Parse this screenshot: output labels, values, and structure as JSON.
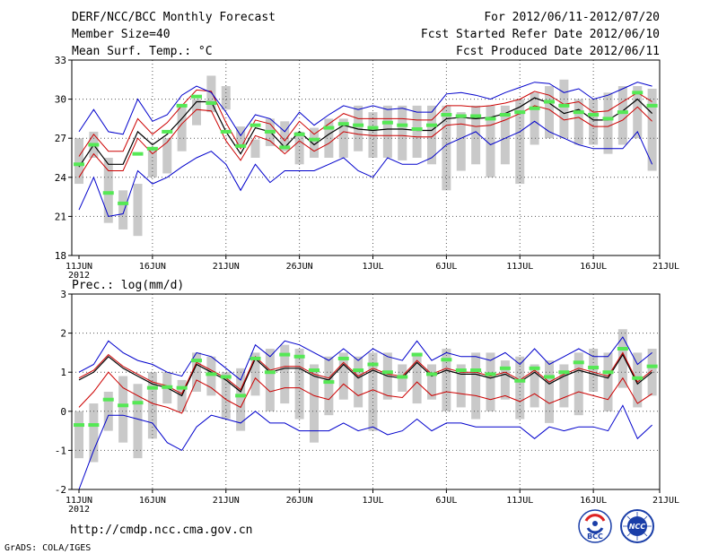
{
  "header": {
    "left": [
      "DERF/NCC/BCC Monthly Forecast",
      "Member Size=40",
      "Mean Surf. Temp.: °C"
    ],
    "right": [
      "For 2012/06/11-2012/07/20",
      "Fcst Started Refer Date 2012/06/10",
      "Fcst Produced Date 2012/06/11"
    ]
  },
  "footer": {
    "url": "http://cmdp.ncc.cma.gov.cn",
    "credit": "GrADS: COLA/IGES",
    "logo1": "BCC",
    "logo2": "NCC"
  },
  "colors": {
    "spread": "#c9c9c9",
    "median": "#55e855",
    "envelope": "#0000cc",
    "band": "#cc0000",
    "mean": "#000000",
    "grid": "#555555"
  },
  "chart_data": [
    {
      "type": "line",
      "title": "Mean Surf. Temp.: °C",
      "ylim": [
        18,
        33
      ],
      "yticks": [
        18,
        21,
        24,
        27,
        30,
        33
      ],
      "xtick_labels": [
        "11JUN",
        "16JUN",
        "21JUN",
        "26JUN",
        "1JUL",
        "6JUL",
        "11JUL",
        "16JUL",
        "21JUL"
      ],
      "xtick_days": [
        0,
        5,
        10,
        15,
        20,
        25,
        30,
        35,
        40
      ],
      "x_sublabel": "2012",
      "days": [
        0,
        1,
        2,
        3,
        4,
        5,
        6,
        7,
        8,
        9,
        10,
        11,
        12,
        13,
        14,
        15,
        16,
        17,
        18,
        19,
        20,
        21,
        22,
        23,
        24,
        25,
        26,
        27,
        28,
        29,
        30,
        31,
        32,
        33,
        34,
        35,
        36,
        37,
        38,
        39
      ],
      "box_low": [
        23.5,
        25.5,
        20.5,
        20.0,
        19.5,
        24.0,
        24.3,
        26.0,
        28.0,
        29.0,
        29.2,
        26.5,
        25.5,
        26.4,
        26.0,
        25.0,
        25.5,
        25.5,
        25.5,
        26.0,
        25.5,
        25.5,
        25.3,
        25.5,
        25.0,
        23.0,
        24.5,
        25.0,
        24.0,
        25.0,
        23.5,
        26.5,
        27.0,
        27.0,
        26.5,
        26.5,
        25.8,
        26.5,
        27.0,
        24.5
      ],
      "box_high": [
        27.0,
        27.5,
        25.5,
        23.0,
        23.5,
        26.2,
        27.0,
        29.5,
        30.0,
        31.8,
        31.0,
        27.9,
        26.9,
        28.5,
        28.3,
        27.5,
        27.8,
        28.5,
        28.5,
        29.5,
        29.0,
        29.5,
        29.5,
        29.5,
        29.5,
        29.5,
        29.0,
        29.5,
        29.5,
        29.5,
        30.0,
        30.5,
        31.0,
        31.5,
        30.0,
        30.0,
        30.5,
        31.0,
        31.0,
        30.8
      ],
      "series": [
        {
          "name": "median",
          "values": [
            25.0,
            26.5,
            22.8,
            22.0,
            25.8,
            26.2,
            27.5,
            29.5,
            30.2,
            29.7,
            27.5,
            26.4,
            28.0,
            27.5,
            26.3,
            27.3,
            26.9,
            27.8,
            28.1,
            28.0,
            27.8,
            28.2,
            28.0,
            27.7,
            28.0,
            28.8,
            28.7,
            28.7,
            28.5,
            28.8,
            29.0,
            29.3,
            29.8,
            29.5,
            29.0,
            28.8,
            28.5,
            29.0,
            30.5,
            29.5
          ]
        },
        {
          "name": "mean",
          "values": [
            24.8,
            26.5,
            25.0,
            25.0,
            27.5,
            26.5,
            27.3,
            28.5,
            29.8,
            29.8,
            27.5,
            25.8,
            27.8,
            27.5,
            26.3,
            27.5,
            26.5,
            27.3,
            28.0,
            27.7,
            27.6,
            27.7,
            27.7,
            27.6,
            27.6,
            28.5,
            28.6,
            28.5,
            28.6,
            28.9,
            29.4,
            30.1,
            29.7,
            28.9,
            29.2,
            28.4,
            28.4,
            29.1,
            30.0,
            28.9
          ]
        },
        {
          "name": "upper-band",
          "values": [
            25.6,
            27.3,
            26.0,
            26.0,
            28.5,
            27.3,
            28.2,
            29.5,
            30.7,
            30.6,
            28.2,
            26.2,
            28.4,
            28.1,
            26.8,
            28.3,
            27.3,
            28.1,
            28.9,
            28.5,
            28.5,
            28.5,
            28.5,
            28.4,
            28.4,
            29.5,
            29.5,
            29.4,
            29.5,
            29.7,
            30.0,
            30.6,
            30.3,
            29.6,
            29.8,
            29.0,
            29.1,
            29.8,
            30.5,
            29.8
          ]
        },
        {
          "name": "lower-band",
          "values": [
            24.0,
            25.8,
            24.5,
            24.5,
            27.0,
            25.8,
            26.7,
            28.1,
            29.2,
            29.1,
            26.8,
            25.3,
            27.2,
            26.8,
            25.8,
            26.8,
            26.0,
            26.6,
            27.5,
            27.3,
            27.2,
            27.2,
            27.2,
            27.1,
            27.1,
            28.0,
            28.1,
            27.9,
            28.0,
            28.4,
            28.9,
            29.5,
            29.2,
            28.4,
            28.6,
            27.9,
            27.9,
            28.4,
            29.4,
            28.3
          ]
        },
        {
          "name": "upper-envelope",
          "values": [
            27.5,
            29.2,
            27.5,
            27.3,
            30.0,
            28.3,
            28.8,
            30.3,
            31.0,
            30.5,
            29.0,
            27.2,
            28.8,
            28.5,
            27.5,
            29.0,
            28.0,
            28.8,
            29.5,
            29.2,
            29.5,
            29.2,
            29.3,
            29.0,
            29.0,
            30.4,
            30.5,
            30.3,
            30.0,
            30.5,
            30.9,
            31.3,
            31.2,
            30.5,
            30.8,
            30.0,
            30.3,
            30.8,
            31.3,
            31.0
          ]
        },
        {
          "name": "lower-envelope",
          "values": [
            21.5,
            24.0,
            21.0,
            21.2,
            24.5,
            23.5,
            24.0,
            24.8,
            25.5,
            26.0,
            25.0,
            23.0,
            25.0,
            23.6,
            24.5,
            24.5,
            24.5,
            25.0,
            25.5,
            24.5,
            24.0,
            25.5,
            25.0,
            25.0,
            25.5,
            26.5,
            27.0,
            27.5,
            26.5,
            27.0,
            27.5,
            28.3,
            27.5,
            27.0,
            26.5,
            26.2,
            26.2,
            26.2,
            27.5,
            25.0
          ]
        }
      ]
    },
    {
      "type": "line",
      "title": "Prec.: log(mm/d)",
      "ylim": [
        -2,
        3
      ],
      "yticks": [
        -2,
        -1,
        0,
        1,
        2,
        3
      ],
      "xtick_labels": [
        "11JUN",
        "16JUN",
        "21JUN",
        "26JUN",
        "1JUL",
        "6JUL",
        "11JUL",
        "16JUL",
        "21JUL"
      ],
      "xtick_days": [
        0,
        5,
        10,
        15,
        20,
        25,
        30,
        35,
        40
      ],
      "x_sublabel": "2012",
      "days": [
        0,
        1,
        2,
        3,
        4,
        5,
        6,
        7,
        8,
        9,
        10,
        11,
        12,
        13,
        14,
        15,
        16,
        17,
        18,
        19,
        20,
        21,
        22,
        23,
        24,
        25,
        26,
        27,
        28,
        29,
        30,
        31,
        32,
        33,
        34,
        35,
        36,
        37,
        38,
        39
      ],
      "box_low": [
        -1.2,
        -1.3,
        -0.5,
        -0.8,
        -1.2,
        -0.7,
        0.2,
        0.0,
        0.5,
        0.4,
        -0.2,
        -0.5,
        0.4,
        0.0,
        0.2,
        -0.2,
        -0.8,
        -0.1,
        0.3,
        0.1,
        -0.5,
        0.3,
        0.5,
        0.2,
        0.3,
        0.0,
        0.1,
        -0.2,
        0.0,
        0.3,
        -0.2,
        0.1,
        -0.3,
        0.1,
        -0.1,
        0.5,
        0.0,
        0.6,
        0.1,
        0.4
      ],
      "box_high": [
        0.0,
        0.2,
        0.5,
        0.9,
        0.7,
        1.0,
        1.0,
        0.8,
        1.5,
        1.4,
        1.0,
        1.1,
        1.5,
        1.6,
        1.7,
        1.6,
        1.2,
        1.4,
        1.5,
        1.4,
        1.5,
        1.5,
        1.2,
        1.5,
        1.2,
        1.6,
        1.2,
        1.5,
        1.5,
        1.3,
        1.4,
        1.2,
        1.3,
        1.2,
        1.5,
        1.6,
        1.5,
        2.1,
        1.5,
        1.6
      ],
      "series": [
        {
          "name": "median",
          "values": [
            -0.35,
            -0.35,
            0.3,
            0.15,
            0.22,
            0.6,
            0.62,
            0.6,
            1.3,
            0.95,
            0.88,
            0.4,
            1.35,
            1.0,
            1.45,
            1.4,
            1.05,
            0.75,
            1.35,
            1.05,
            1.2,
            1.0,
            0.88,
            1.45,
            0.95,
            1.32,
            1.05,
            1.05,
            0.95,
            1.1,
            0.78,
            1.1,
            0.88,
            1.0,
            1.25,
            1.12,
            1.0,
            1.6,
            0.85,
            1.15
          ]
        },
        {
          "name": "mean",
          "values": [
            0.8,
            1.0,
            1.4,
            1.1,
            0.9,
            0.7,
            0.6,
            0.4,
            1.2,
            1.0,
            0.8,
            0.5,
            1.35,
            1.0,
            1.1,
            1.1,
            0.9,
            0.8,
            1.2,
            0.85,
            1.05,
            0.9,
            0.85,
            1.25,
            0.9,
            1.05,
            0.95,
            0.95,
            0.85,
            0.95,
            0.75,
            1.0,
            0.7,
            0.9,
            1.05,
            0.95,
            0.85,
            1.45,
            0.7,
            1.0
          ]
        },
        {
          "name": "upper-band",
          "values": [
            0.85,
            1.05,
            1.45,
            1.15,
            0.95,
            0.75,
            0.65,
            0.45,
            1.25,
            1.05,
            0.85,
            0.55,
            1.4,
            1.05,
            1.15,
            1.15,
            0.95,
            0.85,
            1.25,
            0.9,
            1.1,
            0.95,
            0.9,
            1.3,
            0.95,
            1.1,
            1.0,
            1.0,
            0.9,
            1.0,
            0.8,
            1.05,
            0.75,
            0.95,
            1.1,
            1.0,
            0.9,
            1.5,
            0.75,
            1.05
          ]
        },
        {
          "name": "lower-band",
          "values": [
            0.1,
            0.5,
            1.0,
            0.6,
            0.4,
            0.2,
            0.1,
            -0.05,
            0.8,
            0.6,
            0.3,
            0.1,
            0.85,
            0.5,
            0.6,
            0.6,
            0.4,
            0.3,
            0.7,
            0.4,
            0.55,
            0.4,
            0.35,
            0.75,
            0.4,
            0.5,
            0.45,
            0.4,
            0.3,
            0.4,
            0.25,
            0.45,
            0.2,
            0.35,
            0.5,
            0.4,
            0.3,
            0.85,
            0.2,
            0.45
          ]
        },
        {
          "name": "upper-envelope",
          "values": [
            1.0,
            1.2,
            1.8,
            1.5,
            1.3,
            1.2,
            1.0,
            0.9,
            1.5,
            1.4,
            1.1,
            0.8,
            1.7,
            1.4,
            1.8,
            1.7,
            1.5,
            1.3,
            1.6,
            1.3,
            1.6,
            1.4,
            1.3,
            1.8,
            1.3,
            1.5,
            1.4,
            1.4,
            1.3,
            1.5,
            1.2,
            1.6,
            1.2,
            1.4,
            1.6,
            1.4,
            1.4,
            1.9,
            1.2,
            1.5
          ]
        },
        {
          "name": "lower-envelope",
          "values": [
            -2.0,
            -1.0,
            -0.1,
            -0.1,
            -0.2,
            -0.3,
            -0.8,
            -1.0,
            -0.4,
            -0.1,
            -0.2,
            -0.3,
            0.0,
            -0.3,
            -0.3,
            -0.5,
            -0.5,
            -0.5,
            -0.3,
            -0.5,
            -0.4,
            -0.6,
            -0.5,
            -0.2,
            -0.5,
            -0.3,
            -0.3,
            -0.4,
            -0.4,
            -0.4,
            -0.4,
            -0.7,
            -0.4,
            -0.5,
            -0.4,
            -0.4,
            -0.5,
            0.15,
            -0.7,
            -0.35
          ]
        }
      ]
    }
  ]
}
